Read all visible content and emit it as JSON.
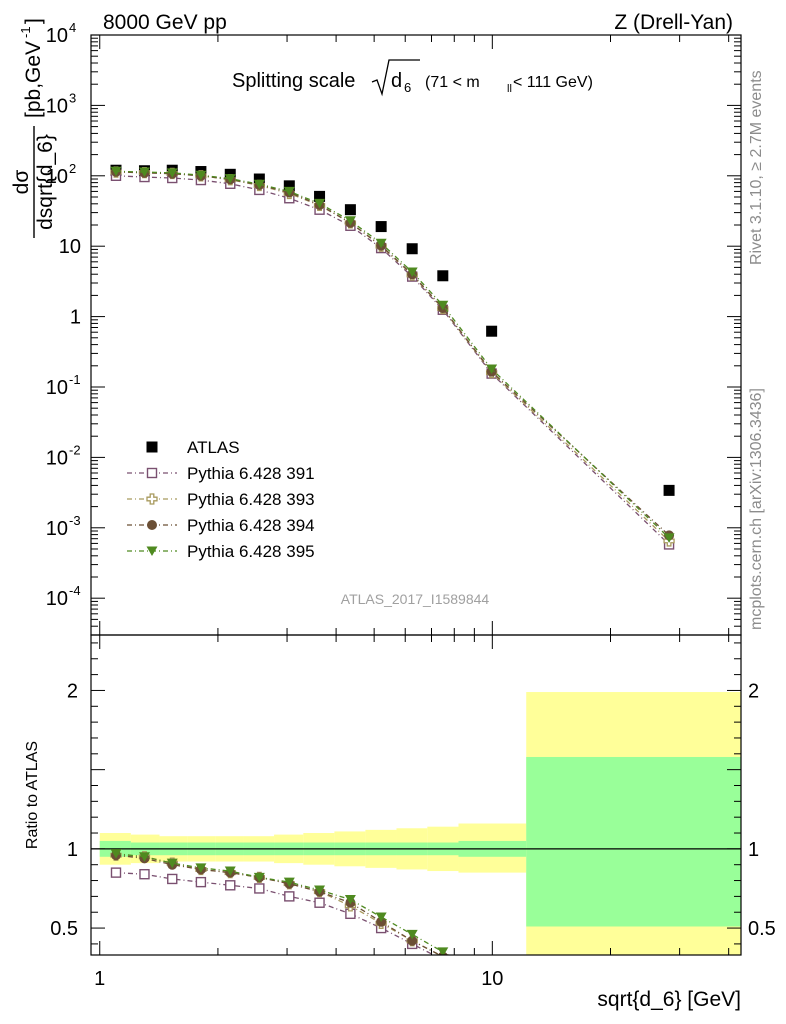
{
  "header": {
    "beam": "8000 GeV pp",
    "process": "Z (Drell-Yan)"
  },
  "side_labels": {
    "rivet": "Rivet 3.1.10, ≥ 2.7M events",
    "mcplots": "mcplots.cern.ch [arXiv:1306.3436]"
  },
  "chart_data": [
    {
      "type": "scatter",
      "panel": "main",
      "title": "Splitting scale",
      "title_symbol": "d",
      "title_symbol_sub": "6",
      "title_range_pre": "(71 < m",
      "title_range_sub": "ll",
      "title_range_post": " < 111 GeV)",
      "ylabel_num": "dσ",
      "ylabel_den": "dsqrt{d_6}",
      "ylabel_units_pre": "[pb,GeV",
      "ylabel_units_sup": "-1",
      "ylabel_units_post": "]",
      "analysis_id": "ATLAS_2017_I1589844",
      "x_scale": "log",
      "y_scale": "log",
      "xlim": [
        0.95,
        43
      ],
      "ylim": [
        3e-05,
        10000
      ],
      "y_tick_labels": [
        {
          "v": 0.0001,
          "base": "10",
          "exp": "-4"
        },
        {
          "v": 0.001,
          "base": "10",
          "exp": "-3"
        },
        {
          "v": 0.01,
          "base": "10",
          "exp": "-2"
        },
        {
          "v": 0.1,
          "base": "10",
          "exp": "-1"
        },
        {
          "v": 1,
          "base": "1",
          "exp": ""
        },
        {
          "v": 10,
          "base": "10",
          "exp": ""
        },
        {
          "v": 100,
          "base": "10",
          "exp": "2"
        },
        {
          "v": 1000,
          "base": "10",
          "exp": "3"
        },
        {
          "v": 10000,
          "base": "10",
          "exp": "4"
        }
      ],
      "legend_position": "lower-left",
      "x": [
        1.1,
        1.3,
        1.53,
        1.81,
        2.15,
        2.55,
        3.04,
        3.63,
        4.35,
        5.21,
        6.25,
        7.48,
        9.96,
        28.2
      ],
      "series": [
        {
          "name": "ATLAS",
          "marker": "square-filled",
          "color": "#000000",
          "dash": "none",
          "values": [
            120,
            118,
            120,
            115,
            105,
            90,
            72,
            51,
            33,
            19,
            9.2,
            3.8,
            0.62,
            0.0034
          ]
        },
        {
          "name": "Pythia 6.428 391",
          "marker": "square-open",
          "color": "#7a5070",
          "dash": "5,3,1,3",
          "values": [
            100,
            96,
            93,
            87,
            77,
            63,
            48,
            33,
            19.5,
            9.4,
            3.7,
            1.25,
            0.155,
            0.00058
          ]
        },
        {
          "name": "Pythia 6.428 393",
          "marker": "cross-open",
          "color": "#a89a5e",
          "dash": "5,3,1,3",
          "values": [
            113,
            111,
            108,
            100,
            88,
            73,
            56,
            38,
            21.5,
            10.0,
            3.9,
            1.3,
            0.16,
            0.00065
          ]
        },
        {
          "name": "Pythia 6.428 394",
          "marker": "circle-filled",
          "color": "#6b4f35",
          "dash": "5,3,1,3",
          "values": [
            114,
            110,
            107,
            100,
            89,
            74,
            58,
            38.5,
            21.5,
            10.2,
            4.0,
            1.32,
            0.165,
            0.00078
          ]
        },
        {
          "name": "Pythia 6.428 395",
          "marker": "triangle-down-filled",
          "color": "#4f8a20",
          "dash": "5,3,1,3",
          "values": [
            116,
            113,
            110,
            102,
            91,
            76,
            60,
            40.5,
            23,
            11.0,
            4.3,
            1.45,
            0.18,
            0.00072
          ]
        }
      ]
    },
    {
      "type": "scatter",
      "panel": "ratio",
      "ylabel": "Ratio to ATLAS",
      "xlabel": "sqrt{d_6} [GeV]",
      "x_scale": "log",
      "xlim": [
        0.95,
        43
      ],
      "ylim": [
        0.33,
        2.35
      ],
      "y_tick_labels": [
        {
          "v": 0.5,
          "label": "0.5"
        },
        {
          "v": 1,
          "label": "1"
        },
        {
          "v": 2,
          "label": "2"
        }
      ],
      "x_tick_labels": [
        {
          "v": 1,
          "label": "1"
        },
        {
          "v": 10,
          "label": "10"
        }
      ],
      "reference_line": 1,
      "bin_edges": [
        1.0,
        1.2,
        1.42,
        1.67,
        1.97,
        2.33,
        2.78,
        3.3,
        3.96,
        4.75,
        5.7,
        6.83,
        8.2,
        12.2,
        43
      ],
      "band_total": [
        {
          "lo": 0.9,
          "hi": 1.1
        },
        {
          "lo": 0.91,
          "hi": 1.09
        },
        {
          "lo": 0.92,
          "hi": 1.08
        },
        {
          "lo": 0.92,
          "hi": 1.08
        },
        {
          "lo": 0.92,
          "hi": 1.08
        },
        {
          "lo": 0.92,
          "hi": 1.08
        },
        {
          "lo": 0.91,
          "hi": 1.09
        },
        {
          "lo": 0.9,
          "hi": 1.1
        },
        {
          "lo": 0.89,
          "hi": 1.11
        },
        {
          "lo": 0.88,
          "hi": 1.12
        },
        {
          "lo": 0.87,
          "hi": 1.13
        },
        {
          "lo": 0.86,
          "hi": 1.14
        },
        {
          "lo": 0.85,
          "hi": 1.16
        },
        {
          "lo": 0.33,
          "hi": 1.99
        }
      ],
      "band_stat": [
        {
          "lo": 0.95,
          "hi": 1.05
        },
        {
          "lo": 0.96,
          "hi": 1.04
        },
        {
          "lo": 0.96,
          "hi": 1.04
        },
        {
          "lo": 0.96,
          "hi": 1.04
        },
        {
          "lo": 0.96,
          "hi": 1.04
        },
        {
          "lo": 0.96,
          "hi": 1.04
        },
        {
          "lo": 0.96,
          "hi": 1.04
        },
        {
          "lo": 0.96,
          "hi": 1.04
        },
        {
          "lo": 0.96,
          "hi": 1.04
        },
        {
          "lo": 0.96,
          "hi": 1.04
        },
        {
          "lo": 0.96,
          "hi": 1.04
        },
        {
          "lo": 0.96,
          "hi": 1.04
        },
        {
          "lo": 0.95,
          "hi": 1.05
        },
        {
          "lo": 0.51,
          "hi": 1.58
        }
      ],
      "x": [
        1.1,
        1.3,
        1.53,
        1.81,
        2.15,
        2.55,
        3.04,
        3.63,
        4.35,
        5.21,
        6.25,
        7.48
      ],
      "series": [
        {
          "name": "Pythia 6.428 391",
          "marker": "square-open",
          "color": "#7a5070",
          "dash": "5,3,1,3",
          "values": [
            0.85,
            0.84,
            0.81,
            0.79,
            0.77,
            0.75,
            0.7,
            0.66,
            0.59,
            0.5,
            0.4,
            0.3
          ]
        },
        {
          "name": "Pythia 6.428 393",
          "marker": "cross-open",
          "color": "#a89a5e",
          "dash": "5,3,1,3",
          "values": [
            0.96,
            0.95,
            0.91,
            0.87,
            0.85,
            0.82,
            0.78,
            0.73,
            0.64,
            0.53,
            0.42,
            0.32
          ]
        },
        {
          "name": "Pythia 6.428 394",
          "marker": "circle-filled",
          "color": "#6b4f35",
          "dash": "5,3,1,3",
          "values": [
            0.96,
            0.94,
            0.9,
            0.87,
            0.85,
            0.82,
            0.78,
            0.73,
            0.66,
            0.54,
            0.42,
            0.32
          ]
        },
        {
          "name": "Pythia 6.428 395",
          "marker": "triangle-down-filled",
          "color": "#4f8a20",
          "dash": "5,3,1,3",
          "values": [
            0.97,
            0.95,
            0.91,
            0.88,
            0.86,
            0.82,
            0.79,
            0.74,
            0.68,
            0.57,
            0.46,
            0.35
          ]
        }
      ]
    }
  ],
  "colors": {
    "band_total": "#ffff99",
    "band_stat": "#99ff99",
    "watermark": "#a0a0a0",
    "side_text": "#8c8c8c"
  }
}
